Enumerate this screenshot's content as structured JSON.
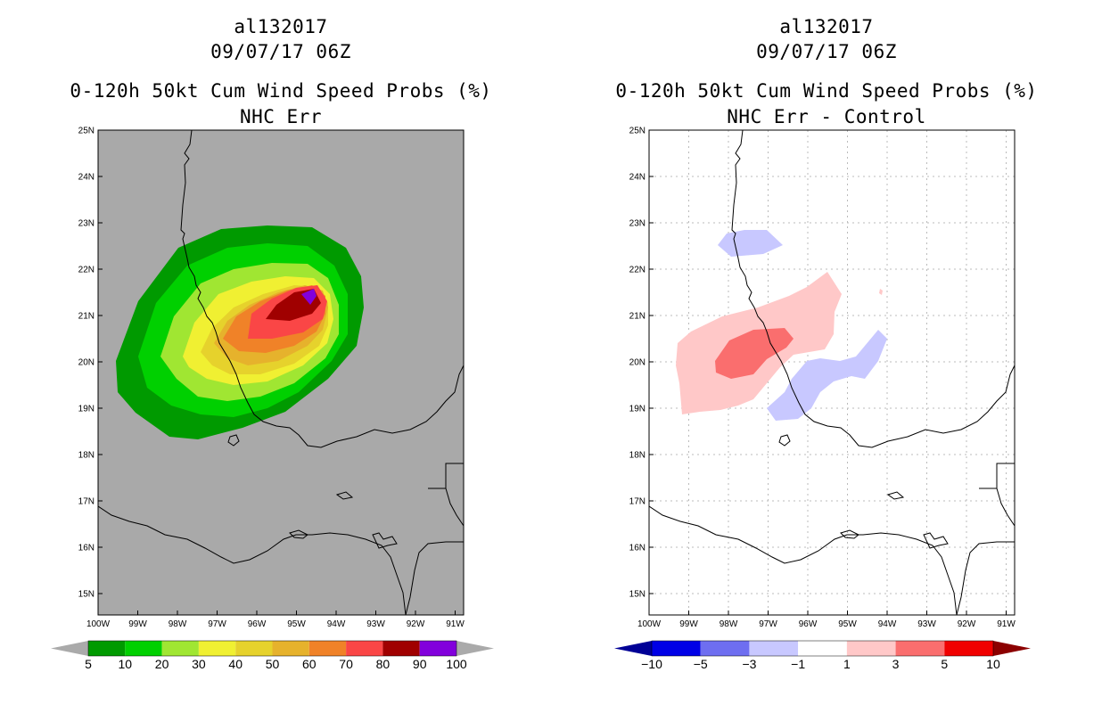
{
  "panels": [
    {
      "storm_id": "al132017",
      "datetime": "09/07/17 06Z",
      "title": "0-120h 50kt Cum Wind Speed Probs (%)",
      "subtitle": "NHC Err",
      "background": "#a9a9a9",
      "lat_ticks": [
        "25N",
        "24N",
        "23N",
        "22N",
        "21N",
        "20N",
        "19N",
        "18N",
        "17N",
        "16N",
        "15N"
      ],
      "lon_ticks": [
        "100W",
        "99W",
        "98W",
        "97W",
        "96W",
        "95W",
        "94W",
        "93W",
        "92W",
        "91W"
      ],
      "colorbar": {
        "labels": [
          "5",
          "10",
          "20",
          "30",
          "40",
          "50",
          "60",
          "70",
          "80",
          "90",
          "100"
        ],
        "colors": [
          "#009a00",
          "#00d000",
          "#a0e632",
          "#f0f032",
          "#e6d22c",
          "#e6b22c",
          "#f08228",
          "#fa4646",
          "#a00000",
          "#8200dc"
        ],
        "end_colors": [
          "#aaaaaa",
          "#aaaaaa"
        ]
      }
    },
    {
      "storm_id": "al132017",
      "datetime": "09/07/17 06Z",
      "title": "0-120h 50kt Cum Wind Speed Probs (%)",
      "subtitle": "NHC Err - Control",
      "background": "#ffffff",
      "lat_ticks": [
        "25N",
        "24N",
        "23N",
        "22N",
        "21N",
        "20N",
        "19N",
        "18N",
        "17N",
        "16N",
        "15N"
      ],
      "lon_ticks": [
        "100W",
        "99W",
        "98W",
        "97W",
        "96W",
        "95W",
        "94W",
        "93W",
        "92W",
        "91W"
      ],
      "colorbar": {
        "labels": [
          "−10",
          "−5",
          "−3",
          "−1",
          "1",
          "3",
          "5",
          "10"
        ],
        "colors": [
          "#0000e6",
          "#6e6ef0",
          "#c8c8ff",
          "#ffffff",
          "#ffc8c8",
          "#fa6e6e",
          "#f00000"
        ],
        "end_colors": [
          "#000096",
          "#8c0000"
        ]
      }
    }
  ]
}
